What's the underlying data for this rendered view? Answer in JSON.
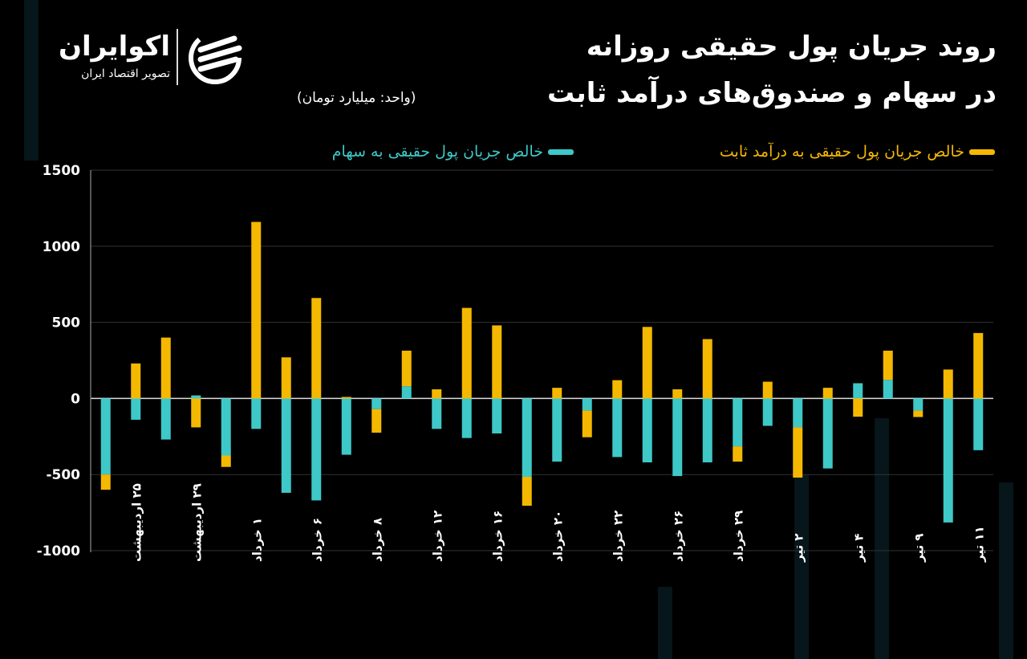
{
  "logo": {
    "name": "اکوایران",
    "tagline": "تصویر اقتصاد ایران"
  },
  "title_line1": "روند جریان پول حقیقی روزانه",
  "title_line2": "در سهام و صندوق‌های درآمد ثابت",
  "unit": "(واحد: میلیارد تومان)",
  "colors": {
    "fixed_income": "#f5b800",
    "stocks": "#3ec8c8",
    "background": "#000000"
  },
  "chart_data": {
    "type": "bar",
    "stacked": true,
    "title": "روند جریان پول حقیقی روزانه در سهام و صندوق‌های درآمد ثابت",
    "ylabel": "(واحد: میلیارد تومان)",
    "ylim": [
      -1000,
      1500
    ],
    "yticks": [
      "1500",
      "1000",
      "500",
      "0",
      "-500",
      "-1000"
    ],
    "grid": true,
    "legend": "top-right",
    "categories": [
      "",
      "۲۵ اردیبهشت",
      "",
      "۲۹ اردیبهشت",
      "",
      "۱ خرداد",
      "",
      "۶ خرداد",
      "",
      "۸ خرداد",
      "",
      "۱۲ خرداد",
      "",
      "۱۶ خرداد",
      "",
      "۲۰ خرداد",
      "",
      "۲۲ خرداد",
      "",
      "۲۶ خرداد",
      "",
      "۲۹ خرداد",
      "",
      "۲ تیر",
      "",
      "۴ تیر",
      "",
      "۹ تیر",
      "",
      "۱۱ تیر"
    ],
    "series": [
      {
        "name": "خالص جریان پول حقیقی به درآمد ثابت",
        "color": "#f5b800",
        "values": [
          -100,
          230,
          400,
          -190,
          -75,
          1160,
          270,
          660,
          10,
          -155,
          234,
          60,
          595,
          480,
          -190,
          70,
          -175,
          120,
          470,
          60,
          390,
          -100,
          110,
          -330,
          70,
          -120,
          192,
          -42,
          190,
          430
        ]
      },
      {
        "name": "خالص جریان پول حقیقی به سهام",
        "color": "#3ec8c8",
        "values": [
          -500,
          -140,
          -270,
          20,
          -375,
          -200,
          -620,
          -670,
          -370,
          -70,
          80,
          -200,
          -260,
          -230,
          -515,
          -415,
          -80,
          -385,
          -420,
          -510,
          -420,
          -315,
          -180,
          -190,
          -460,
          100,
          122,
          -80,
          -815,
          -340
        ]
      }
    ]
  }
}
